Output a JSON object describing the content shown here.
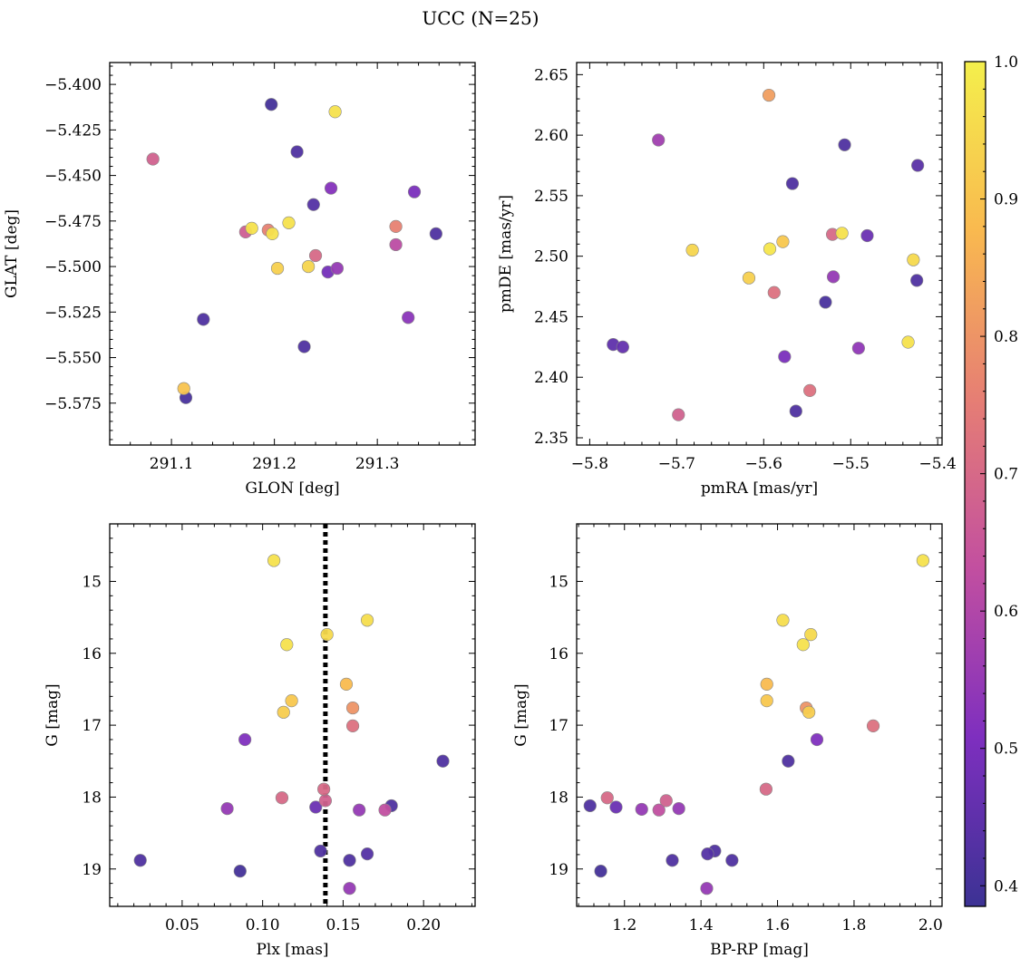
{
  "figure": {
    "title": "UCC (N=25)"
  },
  "colors": {
    "colormap": "plasma",
    "colormap_stops": [
      "#3c3294",
      "#7e2fbf",
      "#c24fa0",
      "#e67e74",
      "#f9b94f",
      "#f4ef4c"
    ],
    "marker_edge": "#888888",
    "vline": "#000000"
  },
  "chart_data": [
    {
      "type": "scatter",
      "xlabel": "GLON [deg]",
      "ylabel": "GLAT [deg]",
      "xlim": [
        291.04,
        291.395
      ],
      "ylim": [
        -5.598,
        -5.388
      ],
      "xticks": [
        291.1,
        291.2,
        291.3
      ],
      "xtick_labels": [
        "291.1",
        "291.2",
        "291.3"
      ],
      "yticks": [
        -5.575,
        -5.55,
        -5.525,
        -5.5,
        -5.475,
        -5.45,
        -5.425,
        -5.4
      ],
      "ytick_labels": [
        "−5.575",
        "−5.550",
        "−5.525",
        "−5.500",
        "−5.475",
        "−5.450",
        "−5.425",
        "−5.400"
      ],
      "points": [
        [
          291.197,
          -5.411,
          0.4
        ],
        [
          291.259,
          -5.415,
          0.97
        ],
        [
          291.082,
          -5.441,
          0.68
        ],
        [
          291.222,
          -5.437,
          0.42
        ],
        [
          291.255,
          -5.457,
          0.52
        ],
        [
          291.336,
          -5.459,
          0.5
        ],
        [
          291.238,
          -5.466,
          0.43
        ],
        [
          291.214,
          -5.476,
          0.97
        ],
        [
          291.178,
          -5.479,
          0.97
        ],
        [
          291.172,
          -5.481,
          0.67
        ],
        [
          291.194,
          -5.48,
          0.76
        ],
        [
          291.198,
          -5.482,
          0.97
        ],
        [
          291.318,
          -5.478,
          0.76
        ],
        [
          291.357,
          -5.482,
          0.42
        ],
        [
          291.318,
          -5.488,
          0.62
        ],
        [
          291.24,
          -5.494,
          0.7
        ],
        [
          291.203,
          -5.501,
          0.93
        ],
        [
          291.233,
          -5.5,
          0.94
        ],
        [
          291.252,
          -5.503,
          0.49
        ],
        [
          291.261,
          -5.501,
          0.55
        ],
        [
          291.131,
          -5.529,
          0.42
        ],
        [
          291.33,
          -5.528,
          0.53
        ],
        [
          291.229,
          -5.544,
          0.42
        ],
        [
          291.112,
          -5.567,
          0.9
        ],
        [
          291.114,
          -5.572,
          0.41
        ]
      ]
    },
    {
      "type": "scatter",
      "xlabel": "pmRA [mas/yr]",
      "ylabel": "pmDE [mas/yr]",
      "xlim": [
        -5.815,
        -5.395
      ],
      "ylim": [
        2.344,
        2.66
      ],
      "xticks": [
        -5.8,
        -5.7,
        -5.6,
        -5.5,
        -5.4
      ],
      "xtick_labels": [
        "−5.8",
        "−5.7",
        "−5.6",
        "−5.5",
        "−5.4"
      ],
      "yticks": [
        2.35,
        2.4,
        2.45,
        2.5,
        2.55,
        2.6,
        2.65
      ],
      "ytick_labels": [
        "2.35",
        "2.40",
        "2.45",
        "2.50",
        "2.55",
        "2.60",
        "2.65"
      ],
      "points": [
        [
          -5.594,
          2.633,
          0.82
        ],
        [
          -5.721,
          2.596,
          0.57
        ],
        [
          -5.507,
          2.592,
          0.42
        ],
        [
          -5.423,
          2.575,
          0.44
        ],
        [
          -5.567,
          2.56,
          0.42
        ],
        [
          -5.51,
          2.519,
          0.97
        ],
        [
          -5.521,
          2.518,
          0.7
        ],
        [
          -5.481,
          2.517,
          0.47
        ],
        [
          -5.578,
          2.512,
          0.91
        ],
        [
          -5.593,
          2.506,
          0.98
        ],
        [
          -5.682,
          2.505,
          0.94
        ],
        [
          -5.428,
          2.497,
          0.95
        ],
        [
          -5.617,
          2.482,
          0.93
        ],
        [
          -5.52,
          2.483,
          0.55
        ],
        [
          -5.424,
          2.48,
          0.42
        ],
        [
          -5.588,
          2.47,
          0.72
        ],
        [
          -5.529,
          2.462,
          0.41
        ],
        [
          -5.773,
          2.427,
          0.45
        ],
        [
          -5.762,
          2.425,
          0.46
        ],
        [
          -5.434,
          2.429,
          0.97
        ],
        [
          -5.491,
          2.424,
          0.54
        ],
        [
          -5.576,
          2.417,
          0.5
        ],
        [
          -5.547,
          2.389,
          0.72
        ],
        [
          -5.698,
          2.369,
          0.68
        ],
        [
          -5.563,
          2.372,
          0.42
        ]
      ]
    },
    {
      "type": "scatter",
      "xlabel": "Plx [mas]",
      "ylabel": "G [mag]",
      "xlim": [
        0.005,
        0.232
      ],
      "ylim": [
        19.52,
        14.2
      ],
      "y_inverted": true,
      "xticks": [
        0.05,
        0.1,
        0.15,
        0.2
      ],
      "xtick_labels": [
        "0.05",
        "0.10",
        "0.15",
        "0.20"
      ],
      "yticks": [
        15,
        16,
        17,
        18,
        19
      ],
      "ytick_labels": [
        "15",
        "16",
        "17",
        "18",
        "19"
      ],
      "vline_x": 0.139,
      "points": [
        [
          0.107,
          14.71,
          0.97
        ],
        [
          0.165,
          15.54,
          0.96
        ],
        [
          0.14,
          15.74,
          0.95
        ],
        [
          0.115,
          15.88,
          0.97
        ],
        [
          0.152,
          16.43,
          0.88
        ],
        [
          0.118,
          16.66,
          0.91
        ],
        [
          0.156,
          16.76,
          0.8
        ],
        [
          0.113,
          16.82,
          0.92
        ],
        [
          0.156,
          17.01,
          0.72
        ],
        [
          0.089,
          17.2,
          0.51
        ],
        [
          0.212,
          17.5,
          0.42
        ],
        [
          0.138,
          17.89,
          0.7
        ],
        [
          0.112,
          18.01,
          0.7
        ],
        [
          0.139,
          18.05,
          0.68
        ],
        [
          0.078,
          18.16,
          0.55
        ],
        [
          0.133,
          18.14,
          0.47
        ],
        [
          0.16,
          18.18,
          0.55
        ],
        [
          0.176,
          18.18,
          0.63
        ],
        [
          0.18,
          18.12,
          0.42
        ],
        [
          0.136,
          18.75,
          0.42
        ],
        [
          0.165,
          18.79,
          0.43
        ],
        [
          0.024,
          18.88,
          0.42
        ],
        [
          0.154,
          18.88,
          0.42
        ],
        [
          0.086,
          19.03,
          0.4
        ],
        [
          0.154,
          19.27,
          0.55
        ]
      ]
    },
    {
      "type": "scatter",
      "xlabel": "BP-RP [mag]",
      "ylabel": "G [mag]",
      "xlim": [
        1.075,
        2.03
      ],
      "ylim": [
        19.52,
        14.2
      ],
      "y_inverted": true,
      "xticks": [
        1.2,
        1.4,
        1.6,
        1.8,
        2.0
      ],
      "xtick_labels": [
        "1.2",
        "1.4",
        "1.6",
        "1.8",
        "2.0"
      ],
      "yticks": [
        15,
        16,
        17,
        18,
        19
      ],
      "ytick_labels": [
        "15",
        "16",
        "17",
        "18",
        "19"
      ],
      "points": [
        [
          1.98,
          14.71,
          0.97
        ],
        [
          1.614,
          15.54,
          0.96
        ],
        [
          1.687,
          15.74,
          0.95
        ],
        [
          1.667,
          15.88,
          0.97
        ],
        [
          1.572,
          16.43,
          0.88
        ],
        [
          1.572,
          16.66,
          0.91
        ],
        [
          1.675,
          16.76,
          0.8
        ],
        [
          1.682,
          16.82,
          0.92
        ],
        [
          1.85,
          17.01,
          0.72
        ],
        [
          1.703,
          17.2,
          0.51
        ],
        [
          1.628,
          17.5,
          0.42
        ],
        [
          1.57,
          17.89,
          0.7
        ],
        [
          1.155,
          18.01,
          0.7
        ],
        [
          1.309,
          18.05,
          0.68
        ],
        [
          1.245,
          18.17,
          0.55
        ],
        [
          1.178,
          18.14,
          0.47
        ],
        [
          1.29,
          18.18,
          0.63
        ],
        [
          1.342,
          18.16,
          0.55
        ],
        [
          1.11,
          18.12,
          0.42
        ],
        [
          1.436,
          18.75,
          0.42
        ],
        [
          1.417,
          18.79,
          0.43
        ],
        [
          1.481,
          18.88,
          0.42
        ],
        [
          1.325,
          18.88,
          0.42
        ],
        [
          1.138,
          19.03,
          0.4
        ],
        [
          1.415,
          19.27,
          0.55
        ]
      ]
    }
  ],
  "colorbar": {
    "range": [
      0.385,
      1.0
    ],
    "ticks": [
      0.4,
      0.5,
      0.6,
      0.7,
      0.8,
      0.9,
      1.0
    ],
    "tick_labels": [
      "0.4",
      "0.5",
      "0.6",
      "0.7",
      "0.8",
      "0.9",
      "1.0"
    ]
  }
}
